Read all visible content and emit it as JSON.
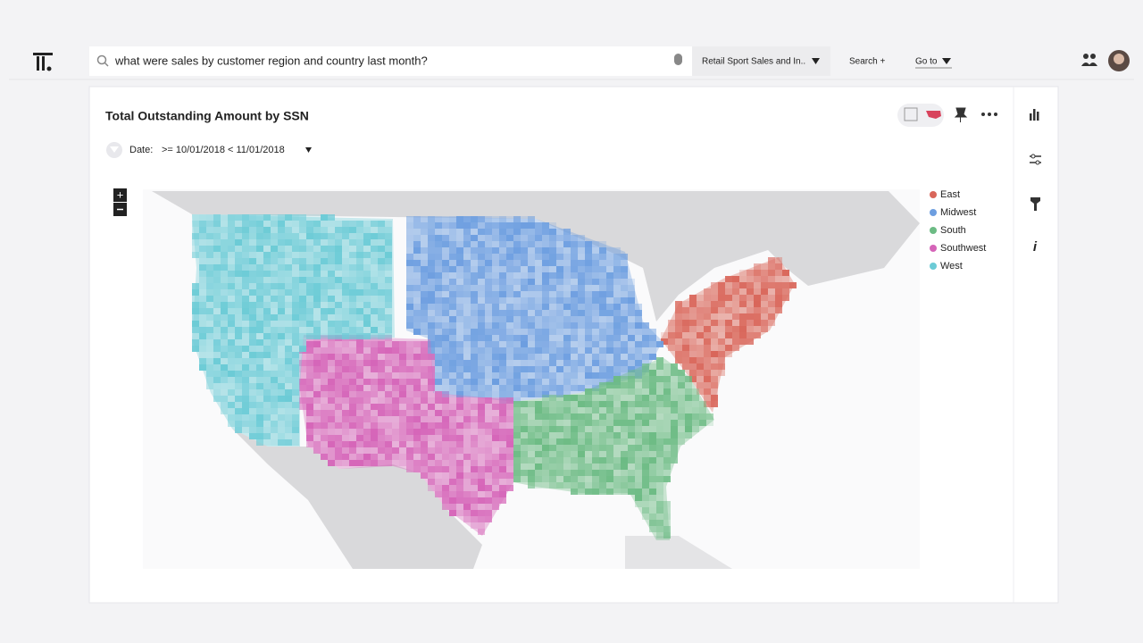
{
  "header": {
    "search_query": "what were sales by customer region and country last month?",
    "data_source": "Retail Sport Sales and In..",
    "search_button": "Search +",
    "goto": "Go to"
  },
  "answer": {
    "title": "Total Outstanding Amount by SSN",
    "filter": {
      "label": "Date:",
      "value": ">= 10/01/2018 < 11/01/2018"
    },
    "legend": [
      {
        "name": "East",
        "color": "#d9665a"
      },
      {
        "name": "Midwest",
        "color": "#6d9ee0"
      },
      {
        "name": "South",
        "color": "#6cbb84"
      },
      {
        "name": "Southwest",
        "color": "#d564b8"
      },
      {
        "name": "West",
        "color": "#6ccbd6"
      }
    ]
  }
}
